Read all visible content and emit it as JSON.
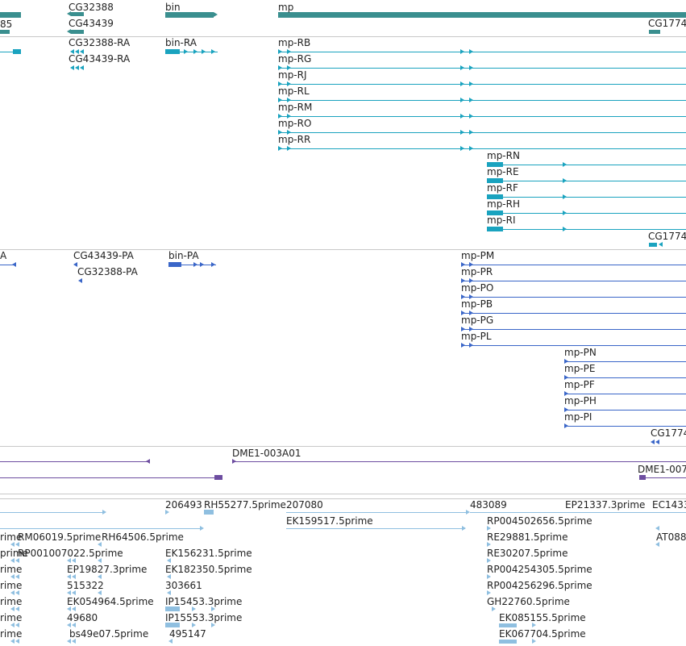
{
  "colors": {
    "gene": "#3a8f8f",
    "rna": "#1aa3bf",
    "protein": "#3a66c8",
    "probe": "#6d4da0",
    "est": "#8fbfe0",
    "divider": "#c8c8c8"
  },
  "tracks": {
    "gene": [
      {
        "label": "85"
      },
      {
        "label": "CG32388"
      },
      {
        "label": "CG43439"
      },
      {
        "label": "bin"
      },
      {
        "label": "mp"
      },
      {
        "label": "CG1774"
      }
    ],
    "rna": [
      {
        "label": "CG32388-RA"
      },
      {
        "label": "CG43439-RA"
      },
      {
        "label": "bin-RA"
      },
      {
        "label": "mp-RB"
      },
      {
        "label": "mp-RG"
      },
      {
        "label": "mp-RJ"
      },
      {
        "label": "mp-RL"
      },
      {
        "label": "mp-RM"
      },
      {
        "label": "mp-RO"
      },
      {
        "label": "mp-RR"
      },
      {
        "label": "mp-RN"
      },
      {
        "label": "mp-RE"
      },
      {
        "label": "mp-RF"
      },
      {
        "label": "mp-RH"
      },
      {
        "label": "mp-RI"
      },
      {
        "label": "CG1774"
      }
    ],
    "protein": [
      {
        "label": "A"
      },
      {
        "label": "CG43439-PA"
      },
      {
        "label": "CG32388-PA"
      },
      {
        "label": "bin-PA"
      },
      {
        "label": "mp-PM"
      },
      {
        "label": "mp-PR"
      },
      {
        "label": "mp-PO"
      },
      {
        "label": "mp-PB"
      },
      {
        "label": "mp-PG"
      },
      {
        "label": "mp-PL"
      },
      {
        "label": "mp-PN"
      },
      {
        "label": "mp-PE"
      },
      {
        "label": "mp-PF"
      },
      {
        "label": "mp-PH"
      },
      {
        "label": "mp-PI"
      },
      {
        "label": "CG1774"
      }
    ],
    "probe": [
      {
        "label": "DME1-003A01"
      },
      {
        "label": "DME1-007"
      }
    ],
    "est": [
      {
        "label": "206493"
      },
      {
        "label": "RH55277.5prime"
      },
      {
        "label": "207080"
      },
      {
        "label": "483089"
      },
      {
        "label": "EP21337.3prime"
      },
      {
        "label": "EC1433"
      },
      {
        "label": "rime"
      },
      {
        "label": "RM06019.5prime"
      },
      {
        "label": "RH64506.5prime"
      },
      {
        "label": "EK159517.5prime"
      },
      {
        "label": "RP004502656.5prime"
      },
      {
        "label": "AT088"
      },
      {
        "label": "prime"
      },
      {
        "label": "RP001007022.5prime"
      },
      {
        "label": "RE29881.5prime"
      },
      {
        "label": "EK156231.5prime"
      },
      {
        "label": "RE30207.5prime"
      },
      {
        "label": "rime"
      },
      {
        "label": "EP19827.3prime"
      },
      {
        "label": "EK182350.5prime"
      },
      {
        "label": "RP004254305.5prime"
      },
      {
        "label": "rime"
      },
      {
        "label": "515322"
      },
      {
        "label": "303661"
      },
      {
        "label": "RP004256296.5prime"
      },
      {
        "label": "rime"
      },
      {
        "label": "EK054964.5prime"
      },
      {
        "label": "IP15453.3prime"
      },
      {
        "label": "GH22760.5prime"
      },
      {
        "label": "rime"
      },
      {
        "label": "49680"
      },
      {
        "label": "IP15553.3prime"
      },
      {
        "label": "EK085155.5prime"
      },
      {
        "label": "rime"
      },
      {
        "label": "bs49e07.5prime"
      },
      {
        "label": "495147"
      },
      {
        "label": "EK067704.5prime"
      }
    ]
  }
}
